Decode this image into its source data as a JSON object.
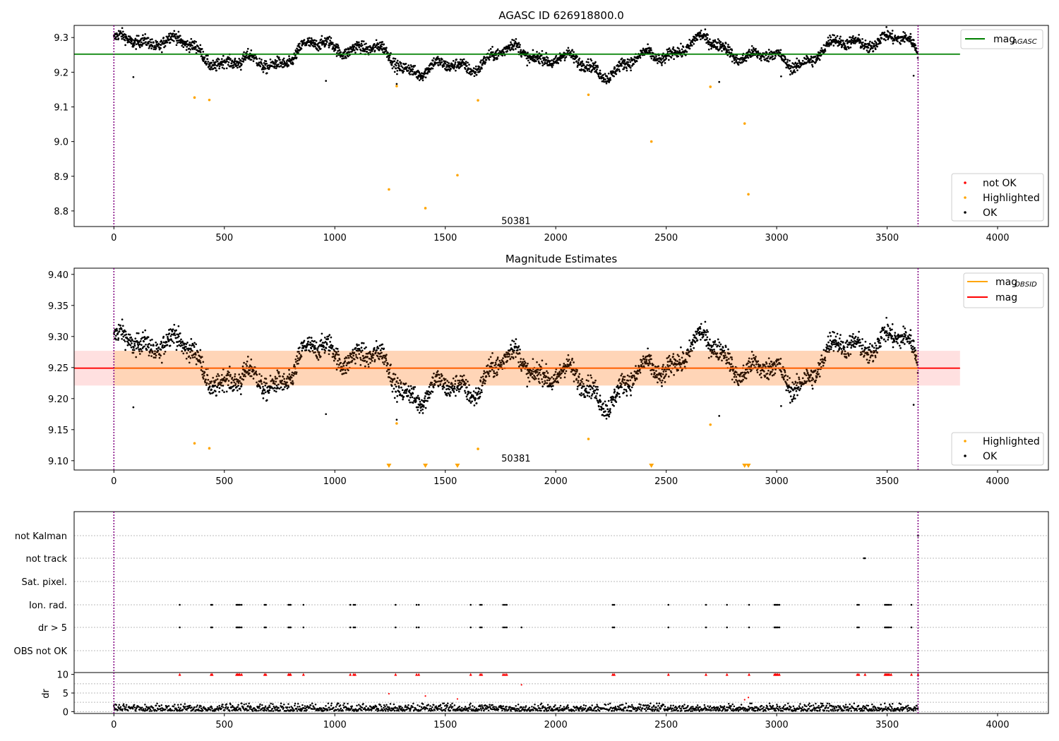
{
  "chart_data": [
    {
      "type": "scatter",
      "title": "AGASC ID 626918800.0",
      "xlim": [
        -180,
        4230
      ],
      "ylim": [
        8.755,
        9.335
      ],
      "xticks": [
        0,
        500,
        1000,
        1500,
        2000,
        2500,
        3000,
        3500,
        4000
      ],
      "yticks": [
        8.8,
        8.9,
        9.0,
        9.1,
        9.2,
        9.3
      ],
      "ytick_labels": [
        "8.8",
        "8.9",
        "9.0",
        "9.1",
        "9.2",
        "9.3"
      ],
      "vlines": [
        0,
        3640
      ],
      "hline": {
        "name": "mag_AGASC",
        "label": "mag",
        "sub": "AGASC",
        "value": 9.252,
        "x_end": 3830,
        "color": "#008000"
      },
      "annotation": {
        "text": "50381",
        "x": 1820,
        "y": 8.78
      },
      "legend_lines": [
        {
          "name": "mag_AGASC",
          "label": "mag",
          "sub": "AGASC",
          "color": "#008000"
        }
      ],
      "legend_markers": [
        {
          "label": "not OK",
          "color": "#ff0000"
        },
        {
          "label": "Highlighted",
          "color": "#ffa500"
        },
        {
          "label": "OK",
          "color": "#000000"
        }
      ],
      "series": [
        {
          "name": "OK",
          "color": "#000000",
          "description": "dense time series of ~3640 points, mag oscillating between 9.20 and 9.31"
        },
        {
          "name": "Highlighted",
          "color": "#ffa500",
          "points": [
            [
              365,
              9.127
            ],
            [
              432,
              9.12
            ],
            [
              1245,
              8.862
            ],
            [
              1280,
              9.16
            ],
            [
              1410,
              8.808
            ],
            [
              1555,
              8.903
            ],
            [
              1648,
              9.119
            ],
            [
              2148,
              9.135
            ],
            [
              2433,
              9.0
            ],
            [
              2700,
              9.158
            ],
            [
              2855,
              9.052
            ],
            [
              2872,
              8.848
            ]
          ]
        }
      ]
    },
    {
      "type": "scatter",
      "title": "Magnitude Estimates",
      "xlim": [
        -180,
        4230
      ],
      "ylim": [
        9.085,
        9.41
      ],
      "xticks": [
        0,
        500,
        1000,
        1500,
        2000,
        2500,
        3000,
        3500,
        4000
      ],
      "yticks": [
        9.1,
        9.15,
        9.2,
        9.25,
        9.3,
        9.35,
        9.4
      ],
      "ytick_labels": [
        "9.10",
        "9.15",
        "9.20",
        "9.25",
        "9.30",
        "9.35",
        "9.40"
      ],
      "vlines": [
        0,
        3640
      ],
      "band_obsid": {
        "y0": 9.221,
        "y1": 9.277,
        "x0": 0,
        "x1": 3640,
        "color": "#ffa500"
      },
      "band_total": {
        "y0": 9.221,
        "y1": 9.277,
        "x0": -180,
        "x1": 3830,
        "color": "#ff0000"
      },
      "hline_obsid": {
        "value": 9.249,
        "x0": 0,
        "x1": 3640,
        "color": "#ffa500"
      },
      "hline_total": {
        "value": 9.249,
        "x0": -180,
        "x1": 3830,
        "color": "#ff0000"
      },
      "annotation": {
        "text": "50381",
        "x": 1820,
        "y": 9.094
      },
      "legend_lines": [
        {
          "name": "mag_OBSID",
          "label": "mag",
          "sub": "OBSID",
          "color": "#ffa500"
        },
        {
          "name": "mag",
          "label": "mag",
          "sub": "",
          "color": "#ff0000"
        }
      ],
      "legend_markers": [
        {
          "label": "Highlighted",
          "color": "#ffa500"
        },
        {
          "label": "OK",
          "color": "#000000"
        }
      ],
      "series": [
        {
          "name": "OK",
          "color": "#000000",
          "description": "same dense time series, points tinted brown inside the band"
        },
        {
          "name": "Highlighted",
          "color": "#ffa500",
          "points": [
            [
              365,
              9.128
            ],
            [
              432,
              9.12
            ],
            [
              1280,
              9.16
            ],
            [
              1648,
              9.119
            ],
            [
              2148,
              9.135
            ],
            [
              2700,
              9.158
            ]
          ]
        },
        {
          "name": "Highlighted (below axis)",
          "color": "#ffa500",
          "marker": "triangle-down",
          "x": [
            1245,
            1410,
            1555,
            2433,
            2855,
            2872
          ]
        }
      ]
    },
    {
      "type": "scatter",
      "title": "",
      "xlim": [
        -180,
        4230
      ],
      "vlines": [
        0,
        3640
      ],
      "ycategories": [
        "not Kalman",
        "not track",
        "Sat. pixel.",
        "Ion. rad.",
        "dr > 5",
        "OBS not OK"
      ],
      "flag_points": {
        "not Kalman": [
          3640
        ],
        "not track": [
          3395,
          3400
        ],
        "Sat. pixel.": [],
        "Ion. rad.": [
          298,
          440,
          445,
          555,
          560,
          565,
          570,
          578,
          682,
          688,
          790,
          795,
          800,
          858,
          1070,
          1085,
          1092,
          1275,
          1370,
          1380,
          1615,
          1658,
          1665,
          1762,
          1770,
          1778,
          2258,
          2265,
          2510,
          2680,
          2775,
          2875,
          2990,
          2995,
          3000,
          3005,
          3012,
          3365,
          3372,
          3490,
          3495,
          3500,
          3505,
          3510,
          3518,
          3610
        ],
        "dr > 5": [
          298,
          440,
          445,
          555,
          560,
          565,
          570,
          578,
          682,
          688,
          790,
          795,
          800,
          858,
          1070,
          1085,
          1092,
          1275,
          1370,
          1380,
          1615,
          1658,
          1665,
          1762,
          1770,
          1778,
          1845,
          2258,
          2265,
          2510,
          2680,
          2775,
          2875,
          2990,
          2995,
          3000,
          3005,
          3012,
          3365,
          3372,
          3490,
          3495,
          3500,
          3505,
          3510,
          3518,
          3610
        ],
        "OBS not OK": []
      }
    },
    {
      "type": "scatter",
      "title": "",
      "ylabel": "dr",
      "xlim": [
        -180,
        4230
      ],
      "ylim": [
        -0.5,
        10.5
      ],
      "xticks": [
        0,
        500,
        1000,
        1500,
        2000,
        2500,
        3000,
        3500,
        4000
      ],
      "yticks": [
        0,
        5,
        10
      ],
      "vlines": [
        0,
        3640
      ],
      "clipped_at_10_x": [
        298,
        440,
        445,
        555,
        560,
        565,
        570,
        578,
        682,
        688,
        790,
        795,
        800,
        858,
        1070,
        1085,
        1092,
        1275,
        1370,
        1380,
        1615,
        1658,
        1665,
        1762,
        1770,
        1778,
        2258,
        2265,
        2510,
        2680,
        2775,
        2875,
        2990,
        2995,
        3000,
        3005,
        3012,
        3365,
        3372,
        3400,
        3490,
        3495,
        3500,
        3505,
        3510,
        3518,
        3610,
        3640
      ],
      "outliers": [
        [
          1245,
          4.8
        ],
        [
          1410,
          4.2
        ],
        [
          1555,
          3.4
        ],
        [
          1845,
          7.2
        ],
        [
          2855,
          3.2
        ],
        [
          2872,
          3.8
        ]
      ],
      "series": [
        {
          "name": "dr",
          "description": "dense points between 0 and 2"
        }
      ]
    }
  ]
}
